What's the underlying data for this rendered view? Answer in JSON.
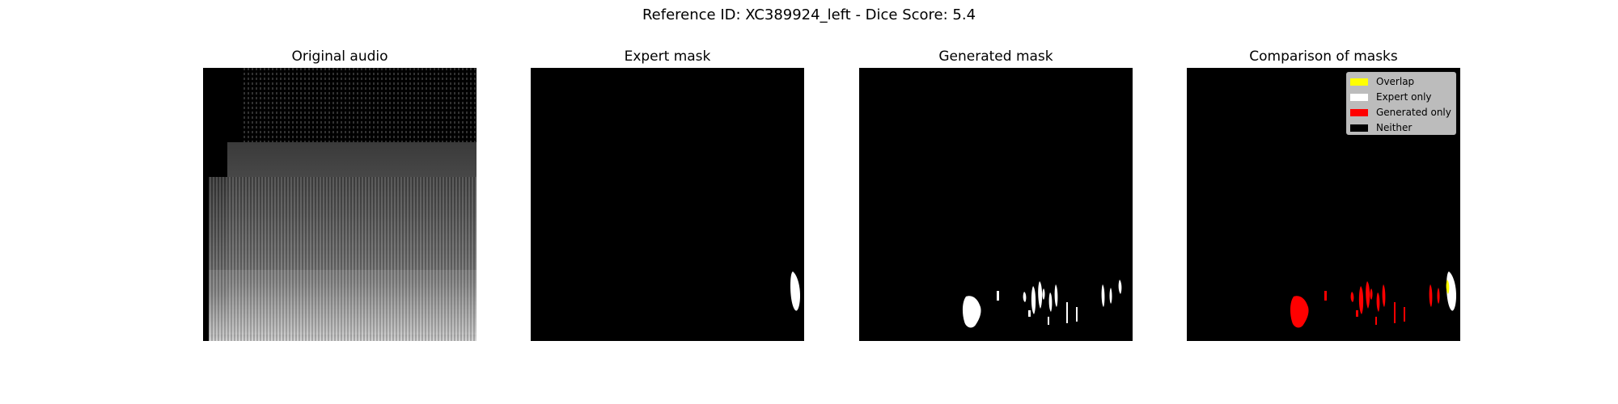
{
  "figure": {
    "title": "Reference ID: XC389924_left - Dice Score: 5.4"
  },
  "panels": [
    {
      "title": "Original audio"
    },
    {
      "title": "Expert mask"
    },
    {
      "title": "Generated mask"
    },
    {
      "title": "Comparison of masks"
    }
  ],
  "legend": {
    "items": [
      {
        "label": "Overlap",
        "color": "#ffff00"
      },
      {
        "label": "Expert only",
        "color": "#ffffff"
      },
      {
        "label": "Generated only",
        "color": "#ff0000"
      },
      {
        "label": "Neither",
        "color": "#000000"
      }
    ]
  }
}
